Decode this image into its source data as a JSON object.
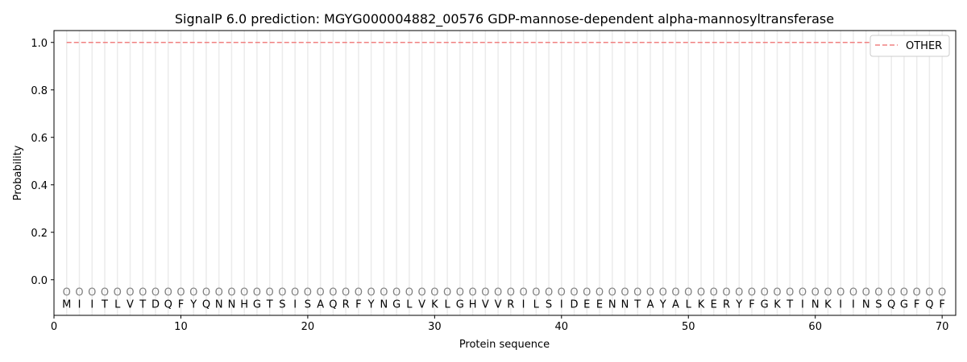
{
  "chart_data": {
    "type": "line",
    "title": "SignalP 6.0 prediction: MGYG000004882_00576 GDP-mannose-dependent alpha-mannosyltransferase",
    "xlabel": "Protein sequence",
    "ylabel": "Probability",
    "xlim": [
      0,
      71.07
    ],
    "ylim": [
      -0.15,
      1.05
    ],
    "xticks": [
      0,
      10,
      20,
      30,
      40,
      50,
      60,
      70
    ],
    "yticks": [
      0.0,
      0.2,
      0.4,
      0.6,
      0.8,
      1.0
    ],
    "ytick_labels": [
      "0.0",
      "0.2",
      "0.4",
      "0.6",
      "0.8",
      "1.0"
    ],
    "sequence": [
      "M",
      "I",
      "I",
      "T",
      "L",
      "V",
      "T",
      "D",
      "Q",
      "F",
      "Y",
      "Q",
      "N",
      "N",
      "H",
      "G",
      "T",
      "S",
      "I",
      "S",
      "A",
      "Q",
      "R",
      "F",
      "Y",
      "N",
      "G",
      "L",
      "V",
      "K",
      "L",
      "G",
      "H",
      "V",
      "V",
      "R",
      "I",
      "L",
      "S",
      "I",
      "D",
      "E",
      "E",
      "N",
      "N",
      "T",
      "A",
      "Y",
      "A",
      "L",
      "K",
      "E",
      "R",
      "Y",
      "F",
      "G",
      "K",
      "T",
      "I",
      "N",
      "K",
      "I",
      "I",
      "N",
      "S",
      "Q",
      "G",
      "F",
      "Q",
      "F"
    ],
    "predicted_label": "O",
    "series": [
      {
        "name": "OTHER",
        "x_range": [
          1,
          70
        ],
        "value": 1.0,
        "color": "#f08080",
        "style": "dashed"
      }
    ],
    "legend_placement": "top-right",
    "grid": "vertical lines at each residue"
  }
}
